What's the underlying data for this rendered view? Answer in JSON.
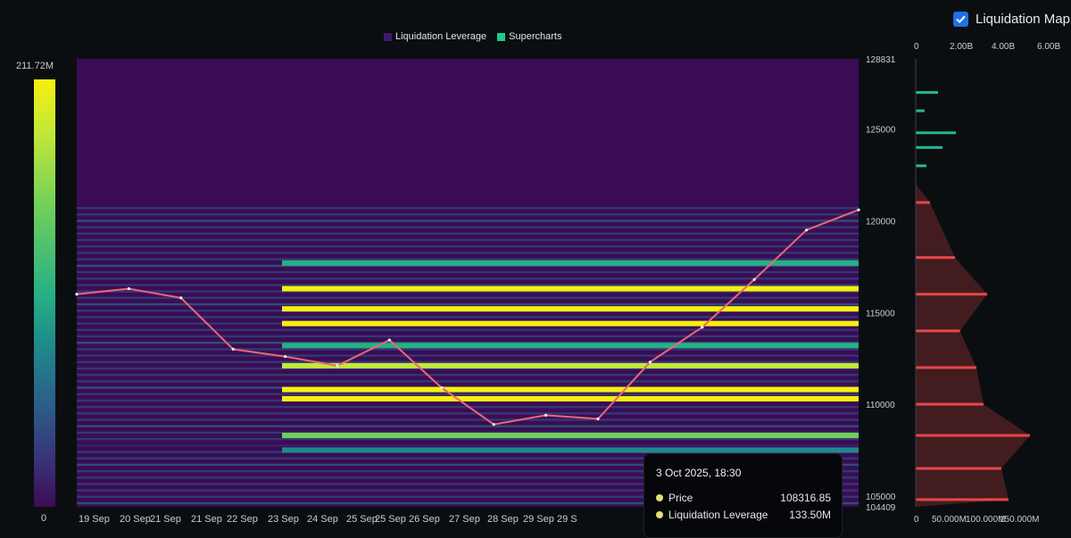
{
  "toggle": {
    "label": "Liquidation Map",
    "checked": true
  },
  "legend": [
    {
      "label": "Liquidation Leverage",
      "color": "#3d1a6e"
    },
    {
      "label": "Supercharts",
      "color": "#1ec98b"
    }
  ],
  "color_scale": {
    "max_label": "211.72M",
    "min_label": "0"
  },
  "tooltip": {
    "title": "3 Oct 2025, 18:30",
    "rows": [
      {
        "label": "Price",
        "value": "108316.85"
      },
      {
        "label": "Liquidation Leverage",
        "value": "133.50M"
      }
    ]
  },
  "chart_data": [
    {
      "type": "heatmap",
      "title": "",
      "x_ticks": [
        "19 Sep",
        "20 Sep",
        "21 Sep",
        "21 Sep",
        "22 Sep",
        "23 Sep",
        "24 Sep",
        "25 Sep",
        "25 Sep",
        "26 Sep",
        "27 Sep",
        "28 Sep",
        "29 Sep",
        "29 S"
      ],
      "y_ticks": [
        128831,
        125000,
        120000,
        115000,
        110000,
        105000,
        104409
      ],
      "ylim": [
        104409,
        128831
      ],
      "color_range": [
        0,
        211.72
      ],
      "color_unit": "M",
      "price_series": [
        {
          "date": "19 Sep",
          "price": 116000
        },
        {
          "date": "20 Sep",
          "price": 116300
        },
        {
          "date": "21 Sep",
          "price": 115800
        },
        {
          "date": "22 Sep",
          "price": 113000
        },
        {
          "date": "23 Sep",
          "price": 112600
        },
        {
          "date": "24 Sep",
          "price": 112100
        },
        {
          "date": "25 Sep",
          "price": 113500
        },
        {
          "date": "25 Sep",
          "price": 110900
        },
        {
          "date": "26 Sep",
          "price": 108900
        },
        {
          "date": "27 Sep",
          "price": 109400
        },
        {
          "date": "28 Sep",
          "price": 109200
        },
        {
          "date": "29 Sep",
          "price": 112300
        },
        {
          "date": "30 Sep",
          "price": 114200
        },
        {
          "date": "1 Oct",
          "price": 116800
        },
        {
          "date": "2 Oct",
          "price": 119500
        },
        {
          "date": "3 Oct",
          "price": 120600
        }
      ],
      "liquidation_bands": [
        {
          "price": 117700,
          "value": 120
        },
        {
          "price": 116300,
          "value": 205
        },
        {
          "price": 115200,
          "value": 190
        },
        {
          "price": 114400,
          "value": 211
        },
        {
          "price": 113200,
          "value": 110
        },
        {
          "price": 112100,
          "value": 180
        },
        {
          "price": 110800,
          "value": 200
        },
        {
          "price": 110300,
          "value": 196
        },
        {
          "price": 108300,
          "value": 133.5
        },
        {
          "price": 107500,
          "value": 95
        }
      ]
    },
    {
      "type": "bar",
      "orientation": "horizontal",
      "top_axis_ticks": [
        "0",
        "2.00B",
        "4.00B",
        "6.00B"
      ],
      "bottom_axis_ticks": [
        "0",
        "50.000M",
        "100.000M",
        "150.000M"
      ],
      "short_side": [
        {
          "price": 127000,
          "value": 25
        },
        {
          "price": 126000,
          "value": 10
        },
        {
          "price": 124800,
          "value": 45
        },
        {
          "price": 124000,
          "value": 30
        },
        {
          "price": 123000,
          "value": 12
        }
      ],
      "long_side": [
        {
          "price": 121000,
          "value": 20
        },
        {
          "price": 118000,
          "value": 55
        },
        {
          "price": 116000,
          "value": 100
        },
        {
          "price": 114000,
          "value": 62
        },
        {
          "price": 112000,
          "value": 85
        },
        {
          "price": 110000,
          "value": 95
        },
        {
          "price": 108300,
          "value": 160
        },
        {
          "price": 106500,
          "value": 120
        },
        {
          "price": 104800,
          "value": 130
        }
      ]
    }
  ]
}
